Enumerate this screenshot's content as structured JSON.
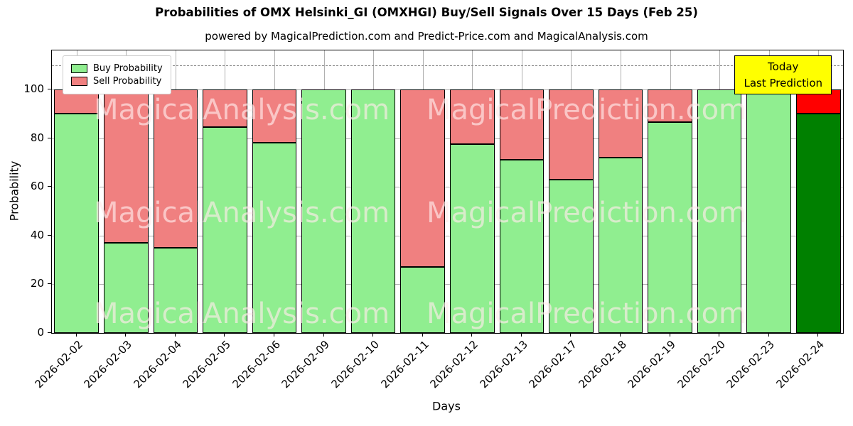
{
  "figure": {
    "title": "Probabilities of OMX Helsinki_GI (OMXHGI) Buy/Sell Signals Over 15 Days (Feb 25)",
    "subtitle": "powered by MagicalPrediction.com and Predict-Price.com and MagicalAnalysis.com"
  },
  "axes": {
    "xlabel": "Days",
    "ylabel": "Probability",
    "yticks": [
      0,
      20,
      40,
      60,
      80,
      100
    ],
    "ylim": [
      0,
      116
    ],
    "dashed_line_y": 110,
    "grid": true
  },
  "legend": {
    "position": "upper-left",
    "buy_label": "Buy Probability",
    "sell_label": "Sell Probability"
  },
  "annotation_box": {
    "line1": "Today",
    "line2": "Last Prediction",
    "bg_color": "#ffff00"
  },
  "watermarks": {
    "left": "MagicalAnalysis.com",
    "right": "MagicalPrediction.com"
  },
  "colors": {
    "buy": "#90EE90",
    "sell": "#F08080",
    "buy_today": "#008000",
    "sell_today": "#FF0000",
    "grid": "#b0b0b0",
    "dashed_line": "#8a8a8a"
  },
  "chart_data": {
    "type": "bar",
    "stacked": true,
    "title": "Probabilities of OMX Helsinki_GI (OMXHGI) Buy/Sell Signals Over 15 Days (Feb 25)",
    "xlabel": "Days",
    "ylabel": "Probability",
    "ylim": [
      0,
      116
    ],
    "grid": true,
    "legend_position": "upper left",
    "dashed_threshold_y": 110,
    "today_bar_index": 15,
    "categories": [
      "2026-02-02",
      "2026-02-03",
      "2026-02-04",
      "2026-02-05",
      "2026-02-06",
      "2026-02-09",
      "2026-02-10",
      "2026-02-11",
      "2026-02-12",
      "2026-02-13",
      "2026-02-17",
      "2026-02-18",
      "2026-02-19",
      "2026-02-20",
      "2026-02-23",
      "2026-02-24"
    ],
    "series": [
      {
        "name": "Buy Probability",
        "values": [
          90,
          37,
          35,
          84.5,
          78,
          100,
          100,
          27,
          77.5,
          71,
          63,
          72,
          86.5,
          100,
          100,
          90
        ]
      },
      {
        "name": "Sell Probability",
        "values": [
          10,
          63,
          65,
          15.5,
          22,
          0,
          0,
          73,
          22.5,
          29,
          37,
          28,
          13.5,
          0,
          0,
          10
        ]
      }
    ]
  }
}
